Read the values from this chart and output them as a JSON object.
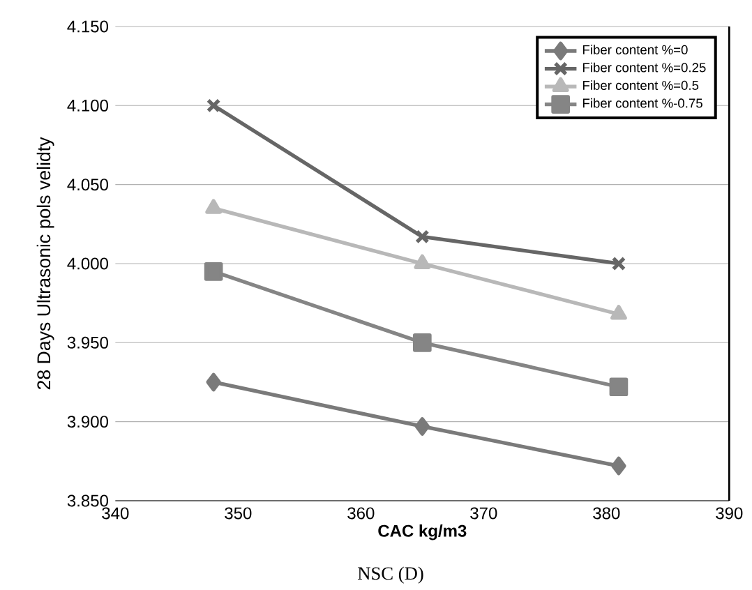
{
  "chart_data": {
    "type": "line",
    "xlabel": "CAC kg/m3",
    "ylabel": "28 Days Ultrasonic pols velidty",
    "x": [
      348,
      365,
      381
    ],
    "series": [
      {
        "name": "Fiber content %=0",
        "color": "#7a7a7a",
        "marker": "diamond",
        "values": [
          3.925,
          3.897,
          3.872
        ]
      },
      {
        "name": "Fiber content %=0.25",
        "color": "#666666",
        "marker": "cross",
        "values": [
          4.1,
          4.017,
          4.0
        ]
      },
      {
        "name": "Fiber content %=0.5",
        "color": "#b8b8b8",
        "marker": "triangle",
        "values": [
          4.035,
          4.0,
          3.968
        ]
      },
      {
        "name": "Fiber content %-0.75",
        "color": "#858585",
        "marker": "square",
        "values": [
          3.995,
          3.95,
          3.922
        ]
      }
    ],
    "xlim": [
      340,
      390
    ],
    "xticks": [
      340,
      350,
      360,
      370,
      380,
      390
    ],
    "ylim": [
      3.85,
      4.15
    ],
    "yticks": [
      {
        "value": 3.85,
        "label": "3.850"
      },
      {
        "value": 3.9,
        "label": "3.900"
      },
      {
        "value": 3.95,
        "label": "3.950"
      },
      {
        "value": 4.0,
        "label": "4.000"
      },
      {
        "value": 4.05,
        "label": "4.050"
      },
      {
        "value": 4.1,
        "label": "4.100"
      },
      {
        "value": 4.15,
        "label": "4.150"
      }
    ],
    "grid": "y",
    "legend": "top right",
    "annotations": [
      "NSC (D)"
    ]
  }
}
